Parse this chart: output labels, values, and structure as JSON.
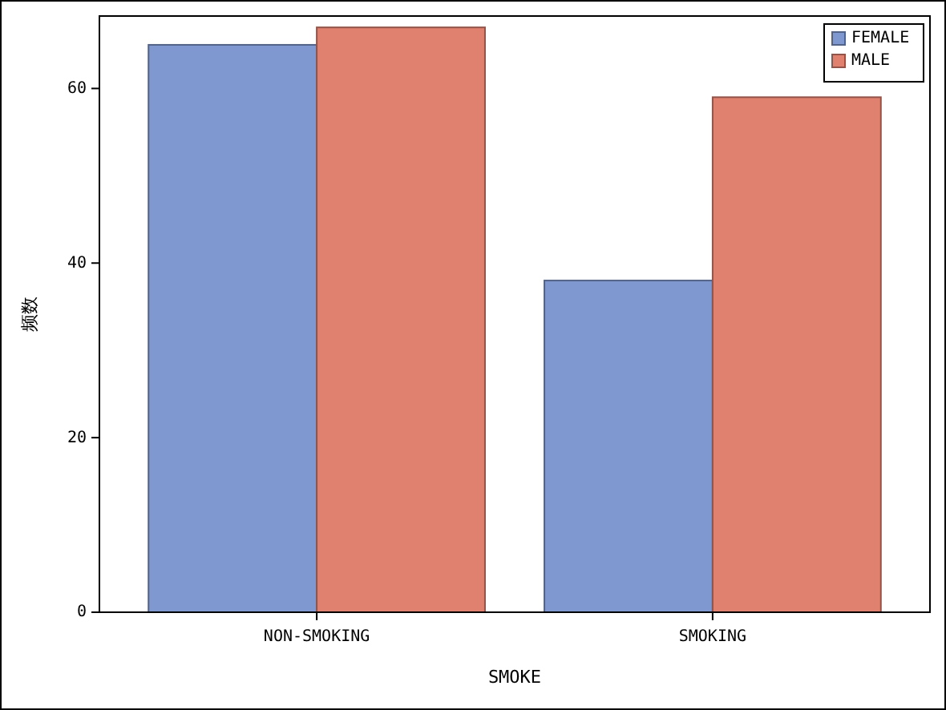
{
  "chart_data": {
    "type": "bar",
    "xlabel": "SMOKE",
    "ylabel": "频数",
    "categories": [
      "NON-SMOKING",
      "SMOKING"
    ],
    "series": [
      {
        "name": "FEMALE",
        "color": "#7f98cf",
        "values": [
          65,
          38
        ]
      },
      {
        "name": "MALE",
        "color": "#e0806f",
        "values": [
          67,
          59
        ]
      }
    ],
    "ylim": [
      0,
      68.3
    ],
    "yticks": [
      0,
      20,
      40,
      60
    ],
    "grid": false,
    "legend": "top right"
  }
}
